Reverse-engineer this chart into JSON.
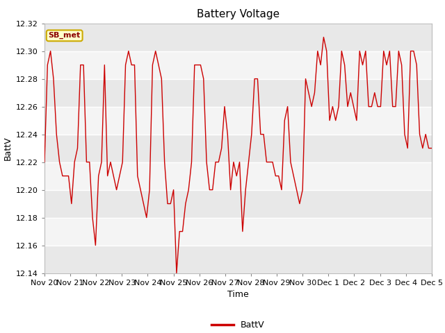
{
  "title": "Battery Voltage",
  "xlabel": "Time",
  "ylabel": "BattV",
  "legend_label": "BattV",
  "line_color": "#cc0000",
  "background_color": "#ffffff",
  "band_colors": [
    "#e8e8e8",
    "#f4f4f4"
  ],
  "grid_line_color": "#ffffff",
  "ylim": [
    12.14,
    12.32
  ],
  "yticks": [
    12.14,
    12.16,
    12.18,
    12.2,
    12.22,
    12.24,
    12.26,
    12.28,
    12.3,
    12.32
  ],
  "annotation_text": "SB_met",
  "annotation_fg": "#8b0000",
  "annotation_bg": "#ffffcc",
  "annotation_border": "#ccaa00",
  "x_tick_labels": [
    "Nov 20",
    "Nov 21",
    "Nov 22",
    "Nov 23",
    "Nov 24",
    "Nov 25",
    "Nov 26",
    "Nov 27",
    "Nov 28",
    "Nov 29",
    "Nov 30",
    "Dec 1",
    "Dec 2",
    "Dec 3",
    "Dec 4",
    "Dec 5"
  ],
  "data_y": [
    12.22,
    12.29,
    12.3,
    12.28,
    12.24,
    12.22,
    12.21,
    12.21,
    12.21,
    12.19,
    12.22,
    12.23,
    12.29,
    12.29,
    12.22,
    12.22,
    12.18,
    12.16,
    12.21,
    12.22,
    12.29,
    12.21,
    12.22,
    12.21,
    12.2,
    12.21,
    12.22,
    12.29,
    12.3,
    12.29,
    12.29,
    12.21,
    12.2,
    12.19,
    12.18,
    12.2,
    12.29,
    12.3,
    12.29,
    12.28,
    12.22,
    12.19,
    12.19,
    12.2,
    12.14,
    12.17,
    12.17,
    12.19,
    12.2,
    12.22,
    12.29,
    12.29,
    12.29,
    12.28,
    12.22,
    12.2,
    12.2,
    12.22,
    12.22,
    12.23,
    12.26,
    12.24,
    12.2,
    12.22,
    12.21,
    12.22,
    12.17,
    12.2,
    12.22,
    12.24,
    12.28,
    12.28,
    12.24,
    12.24,
    12.22,
    12.22,
    12.22,
    12.21,
    12.21,
    12.2,
    12.25,
    12.26,
    12.22,
    12.21,
    12.2,
    12.19,
    12.2,
    12.28,
    12.27,
    12.26,
    12.27,
    12.3,
    12.29,
    12.31,
    12.3,
    12.25,
    12.26,
    12.25,
    12.26,
    12.3,
    12.29,
    12.26,
    12.27,
    12.26,
    12.25,
    12.3,
    12.29,
    12.3,
    12.26,
    12.26,
    12.27,
    12.26,
    12.26,
    12.3,
    12.29,
    12.3,
    12.26,
    12.26,
    12.3,
    12.29,
    12.24,
    12.23,
    12.3,
    12.3,
    12.29,
    12.24,
    12.23,
    12.24,
    12.23,
    12.23
  ]
}
